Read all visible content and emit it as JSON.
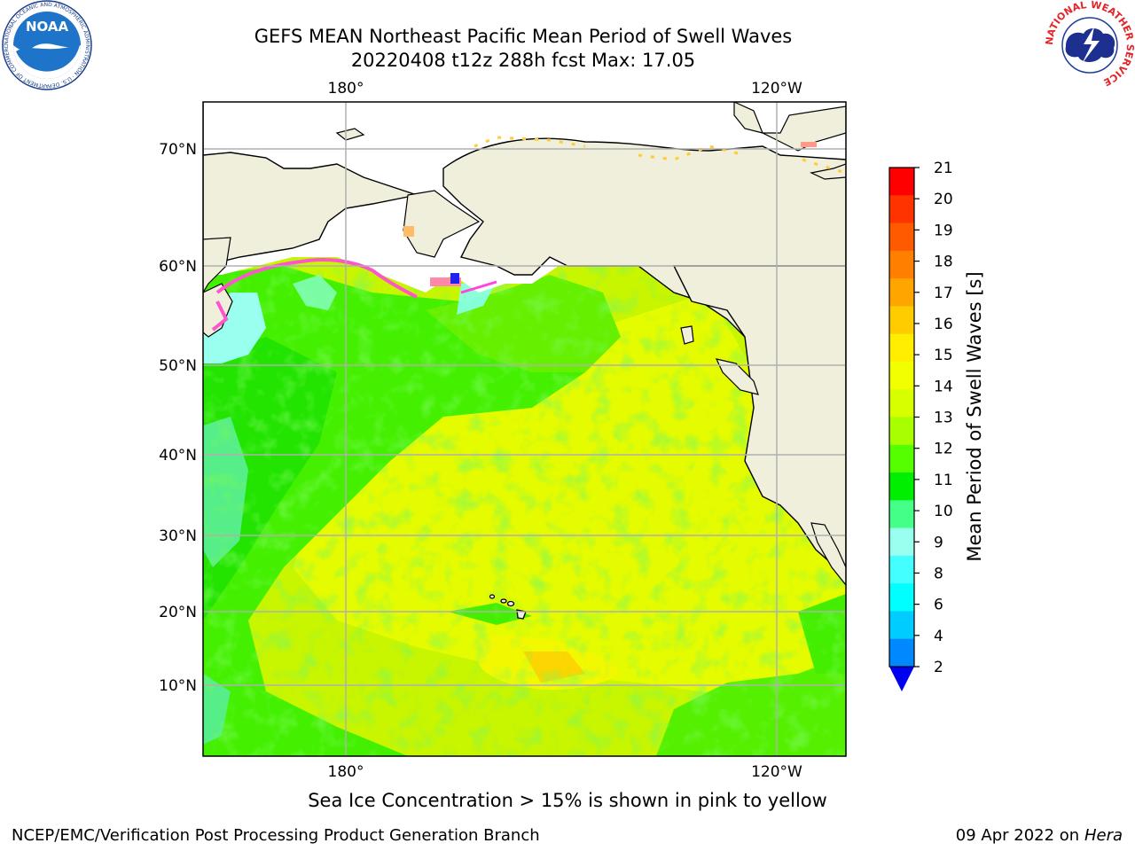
{
  "header": {
    "title_line1": "GEFS MEAN Northeast Pacific Mean Period of Swell Waves",
    "title_line2": "20220408 t12z 288h fcst   Max: 17.05"
  },
  "map": {
    "top_lon_labels": [
      "180°",
      "120°W"
    ],
    "bottom_lon_labels": [
      "180°",
      "120°W"
    ],
    "lat_labels": [
      "70°N",
      "60°N",
      "50°N",
      "40°N",
      "30°N",
      "20°N",
      "10°N"
    ],
    "grid": true
  },
  "colorbar": {
    "label": "Mean Period of Swell Waves [s]",
    "ticks": [
      "21",
      "20",
      "19",
      "18",
      "17",
      "16",
      "15",
      "14",
      "13",
      "12",
      "11",
      "10",
      "9",
      "8",
      "6",
      "4",
      "2"
    ],
    "colors": [
      "#ff0000",
      "#ff3300",
      "#ff5a00",
      "#ff7f00",
      "#ffa500",
      "#ffcc00",
      "#ffee00",
      "#f2ff00",
      "#d8ff00",
      "#a8ff00",
      "#55ff00",
      "#00ee00",
      "#44ff88",
      "#99ffee",
      "#44ffff",
      "#00ffff",
      "#00ccff",
      "#0088ff"
    ],
    "extend_color": "#0000ee"
  },
  "footer": {
    "note": "Sea Ice Concentration > 15% is shown in pink to yellow",
    "credit": "NCEP/EMC/Verification Post Processing Product Generation Branch",
    "date": "09 Apr 2022 on ",
    "host": "Hera"
  },
  "logos": {
    "noaa_text": "NOAA",
    "noaa_ring": "NATIONAL OCEANIC AND ATMOSPHERIC ADMINISTRATION · U.S. DEPARTMENT OF COMMERCE",
    "nws_ring": "NATIONAL WEATHER SERVICE"
  }
}
